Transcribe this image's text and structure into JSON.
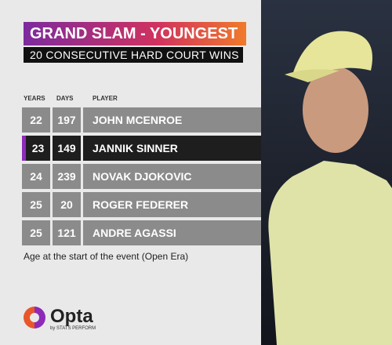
{
  "header": {
    "title": "GRAND SLAM - YOUNGEST",
    "subtitle": "20 CONSECUTIVE HARD COURT WINS"
  },
  "table": {
    "columns": [
      "YEARS",
      "DAYS",
      "PLAYER"
    ],
    "rows": [
      [
        22,
        197,
        "JOHN MCENROE"
      ],
      [
        23,
        149,
        "JANNIK SINNER"
      ],
      [
        24,
        239,
        "NOVAK DJOKOVIC"
      ],
      [
        25,
        20,
        "ROGER FEDERER"
      ],
      [
        25,
        121,
        "ANDRE AGASSI"
      ]
    ]
  },
  "footnote": "Age at the start of the event (Open Era)",
  "logo": {
    "name": "Opta",
    "tagline": "by STATS PERFORM"
  }
}
